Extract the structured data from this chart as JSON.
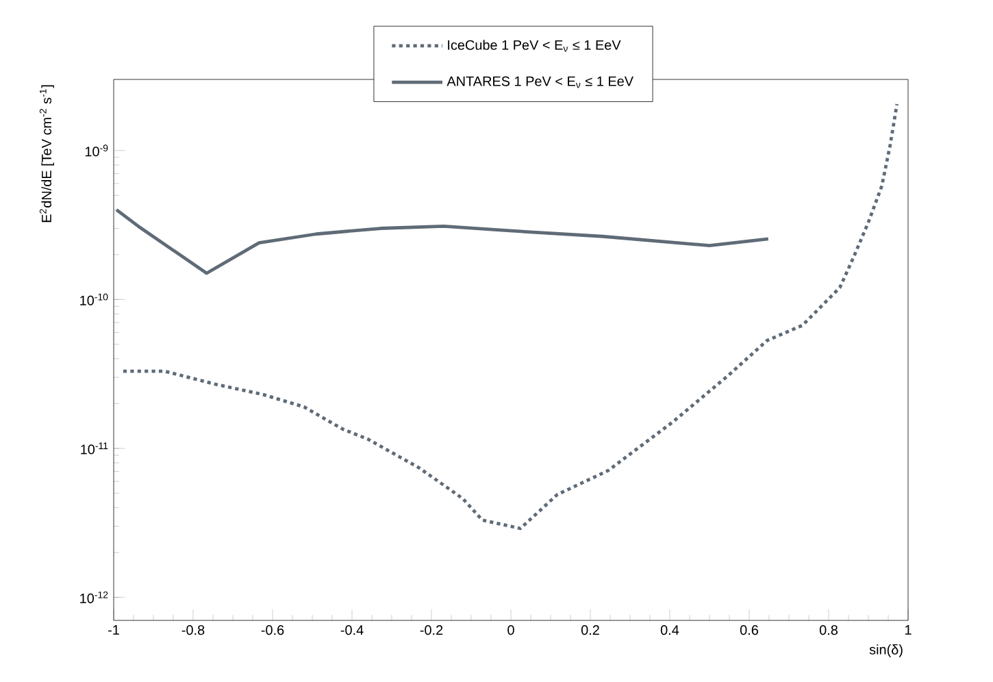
{
  "chart_data": {
    "type": "line",
    "xlabel": "sin(δ)",
    "ylabel": "E$^{2}$dN/dE [TeV cm$^{-2}$ s$^{-1}$]",
    "log": "y",
    "grid": false,
    "legend": "top",
    "marker": "none",
    "xlim": [
      -1,
      1
    ],
    "xticks": [
      -1,
      -0.8,
      -0.6,
      -0.4,
      -0.2,
      0,
      0.2,
      0.4,
      0.6,
      0.8,
      1
    ],
    "ylim": [
      7e-13,
      3e-09
    ],
    "yticks": [
      {
        "value": 1e-12,
        "label": "10$^{-12}$"
      },
      {
        "value": 1e-11,
        "label": "10$^{-11}$"
      },
      {
        "value": 1e-10,
        "label": "10$^{-10}$"
      },
      {
        "value": 1e-09,
        "label": "10$^{-9}$"
      }
    ],
    "series": [
      {
        "name": "IceCube 1 PeV < E$_{ν}$ ≤ 1 EeV",
        "color": "#5f6b77",
        "line_style": "dotted",
        "x": [
          -0.976,
          -0.872,
          -0.745,
          -0.624,
          -0.521,
          -0.424,
          -0.359,
          -0.231,
          -0.121,
          -0.072,
          0.024,
          0.117,
          0.245,
          0.407,
          0.548,
          0.645,
          0.734,
          0.828,
          0.862,
          0.9,
          0.934,
          0.955,
          0.972
        ],
        "values": [
          3.3e-11,
          3.3e-11,
          2.7e-11,
          2.3e-11,
          1.9e-11,
          1.35e-11,
          1.15e-11,
          7.4e-12,
          4.6e-12,
          3.3e-12,
          2.9e-12,
          4.9e-12,
          7.1e-12,
          1.5e-11,
          3.1e-11,
          5.3e-11,
          6.7e-11,
          1.2e-10,
          1.9e-10,
          3.3e-10,
          5.8e-10,
          1.09e-09,
          2.05e-09
        ]
      },
      {
        "name": "ANTARES 1 PeV < E$_{ν}$ ≤ 1 EeV",
        "color": "#5f6b77",
        "line_style": "solid",
        "x": [
          -0.993,
          -0.938,
          -0.766,
          -0.634,
          -0.49,
          -0.328,
          -0.169,
          -0.01,
          0.231,
          0.5,
          0.648
        ],
        "values": [
          4e-10,
          3.1e-10,
          1.5e-10,
          2.4e-10,
          2.75e-10,
          3e-10,
          3.1e-10,
          2.9e-10,
          2.65e-10,
          2.3e-10,
          2.55e-10
        ]
      }
    ]
  }
}
